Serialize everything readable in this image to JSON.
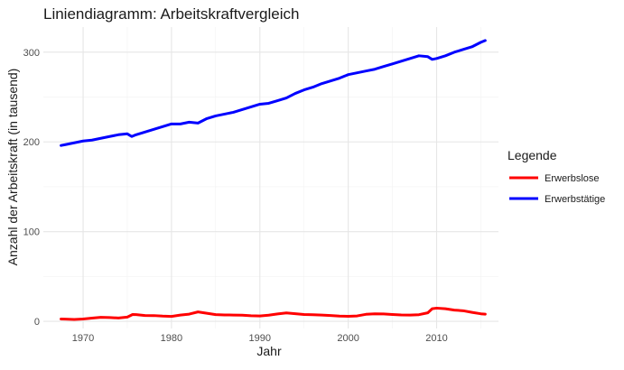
{
  "chart_data": {
    "type": "line",
    "title": "Liniendiagramm: Arbeitskraftvergleich",
    "xlabel": "Jahr",
    "ylabel": "Anzahl der Arbeitskraft (in tausend)",
    "xlim": [
      1965.5,
      2017
    ],
    "ylim": [
      -8,
      328
    ],
    "x_ticks": [
      1970,
      1980,
      1990,
      2000,
      2010
    ],
    "y_ticks": [
      0,
      100,
      200,
      300
    ],
    "grid": true,
    "legend": {
      "title": "Legende",
      "position": "right"
    },
    "series": [
      {
        "name": "Erwerbslose",
        "color": "#ff0000",
        "points": [
          [
            1967.5,
            2.6
          ],
          [
            1968,
            2.4
          ],
          [
            1969,
            2.1
          ],
          [
            1970,
            2.6
          ],
          [
            1971,
            3.6
          ],
          [
            1972,
            4.5
          ],
          [
            1973,
            4.2
          ],
          [
            1974,
            3.7
          ],
          [
            1975,
            4.7
          ],
          [
            1975.6,
            7.6
          ],
          [
            1976,
            7.5
          ],
          [
            1977,
            6.5
          ],
          [
            1978,
            6.4
          ],
          [
            1979,
            5.8
          ],
          [
            1980,
            5.5
          ],
          [
            1981,
            7.0
          ],
          [
            1982,
            8.0
          ],
          [
            1983,
            10.5
          ],
          [
            1984,
            9.0
          ],
          [
            1985,
            7.5
          ],
          [
            1986,
            7.1
          ],
          [
            1987,
            7.0
          ],
          [
            1988,
            6.8
          ],
          [
            1989,
            6.2
          ],
          [
            1990,
            6.0
          ],
          [
            1991,
            6.8
          ],
          [
            1992,
            8.2
          ],
          [
            1993,
            9.3
          ],
          [
            1994,
            8.5
          ],
          [
            1995,
            7.6
          ],
          [
            1996,
            7.3
          ],
          [
            1997,
            7.0
          ],
          [
            1998,
            6.5
          ],
          [
            1999,
            5.8
          ],
          [
            2000,
            5.6
          ],
          [
            2001,
            6.0
          ],
          [
            2002,
            7.8
          ],
          [
            2003,
            8.4
          ],
          [
            2004,
            8.2
          ],
          [
            2005,
            7.6
          ],
          [
            2006,
            7.1
          ],
          [
            2007,
            7.0
          ],
          [
            2008,
            7.4
          ],
          [
            2009,
            9.5
          ],
          [
            2009.5,
            14.0
          ],
          [
            2010,
            14.7
          ],
          [
            2011,
            14.0
          ],
          [
            2012,
            12.5
          ],
          [
            2013,
            11.8
          ],
          [
            2014,
            10.0
          ],
          [
            2015,
            8.4
          ],
          [
            2015.5,
            8.0
          ]
        ]
      },
      {
        "name": "Erwerbstätige",
        "color": "#0000ff",
        "points": [
          [
            1967.5,
            196
          ],
          [
            1968,
            197
          ],
          [
            1969,
            199
          ],
          [
            1970,
            201
          ],
          [
            1971,
            202
          ],
          [
            1972,
            204
          ],
          [
            1973,
            206
          ],
          [
            1974,
            208
          ],
          [
            1975,
            209
          ],
          [
            1975.5,
            206
          ],
          [
            1976,
            208
          ],
          [
            1977,
            211
          ],
          [
            1978,
            214
          ],
          [
            1979,
            217
          ],
          [
            1980,
            220
          ],
          [
            1981,
            220
          ],
          [
            1982,
            222
          ],
          [
            1983,
            221
          ],
          [
            1984,
            226
          ],
          [
            1985,
            229
          ],
          [
            1986,
            231
          ],
          [
            1987,
            233
          ],
          [
            1988,
            236
          ],
          [
            1989,
            239
          ],
          [
            1990,
            242
          ],
          [
            1991,
            243
          ],
          [
            1992,
            246
          ],
          [
            1993,
            249
          ],
          [
            1994,
            254
          ],
          [
            1995,
            258
          ],
          [
            1996,
            261
          ],
          [
            1997,
            265
          ],
          [
            1998,
            268
          ],
          [
            1999,
            271
          ],
          [
            2000,
            275
          ],
          [
            2001,
            277
          ],
          [
            2002,
            279
          ],
          [
            2003,
            281
          ],
          [
            2004,
            284
          ],
          [
            2005,
            287
          ],
          [
            2006,
            290
          ],
          [
            2007,
            293
          ],
          [
            2008,
            296
          ],
          [
            2009,
            295
          ],
          [
            2009.5,
            292
          ],
          [
            2010,
            293
          ],
          [
            2011,
            296
          ],
          [
            2012,
            300
          ],
          [
            2013,
            303
          ],
          [
            2014,
            306
          ],
          [
            2015,
            311
          ],
          [
            2015.5,
            313
          ]
        ]
      }
    ]
  }
}
